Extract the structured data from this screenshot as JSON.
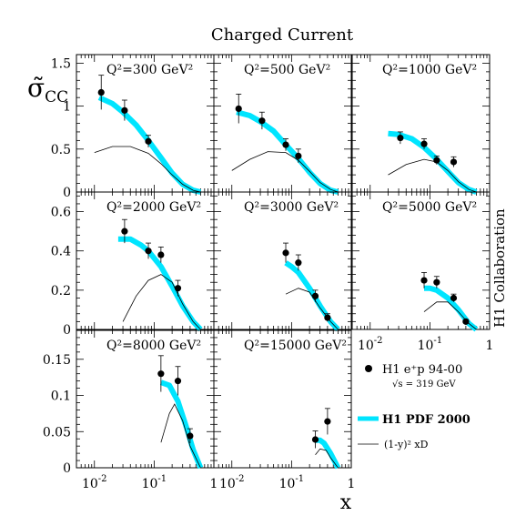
{
  "title": "Charged Current",
  "y_axis_label": "σ̃_CC",
  "x_axis_label": "x",
  "side_label": "H1 Collaboration",
  "x_tick_labels": [
    "10^-2",
    "10^-1",
    "1"
  ],
  "legend": {
    "data_label": "H1 e⁺p 94-00",
    "data_sublabel": "√s = 319 GeV",
    "pdf_label": "H1 PDF 2000",
    "xd_label": "(1-y)² xD"
  },
  "colors": {
    "pdf_band": "#00e5ff",
    "points": "#000000",
    "xd_curve": "#000000"
  },
  "chart_data": [
    {
      "type": "scatter",
      "panel": "Q2=300 GeV2",
      "label": "Q²=300 GeV²",
      "xscale": "log",
      "xlim": [
        0.005,
        1
      ],
      "ylim": [
        0,
        1.6
      ],
      "yticks": [
        "0",
        "0.5",
        "1",
        "1.5"
      ],
      "points": [
        {
          "x": 0.013,
          "y": 1.16,
          "err": 0.2
        },
        {
          "x": 0.032,
          "y": 0.95,
          "err": 0.12
        },
        {
          "x": 0.08,
          "y": 0.59,
          "err": 0.07
        }
      ],
      "pdf": [
        [
          0.012,
          1.1
        ],
        [
          0.02,
          1.03
        ],
        [
          0.03,
          0.93
        ],
        [
          0.05,
          0.78
        ],
        [
          0.08,
          0.6
        ],
        [
          0.13,
          0.4
        ],
        [
          0.2,
          0.22
        ],
        [
          0.3,
          0.09
        ],
        [
          0.45,
          0.02
        ],
        [
          0.6,
          0.0
        ]
      ],
      "xd": [
        [
          0.01,
          0.46
        ],
        [
          0.02,
          0.53
        ],
        [
          0.04,
          0.53
        ],
        [
          0.08,
          0.45
        ],
        [
          0.13,
          0.33
        ],
        [
          0.2,
          0.2
        ],
        [
          0.3,
          0.09
        ],
        [
          0.45,
          0.02
        ],
        [
          0.6,
          0.0
        ]
      ]
    },
    {
      "type": "scatter",
      "panel": "Q2=500 GeV2",
      "label": "Q²=500 GeV²",
      "xscale": "log",
      "xlim": [
        0.005,
        1
      ],
      "ylim": [
        0,
        1.6
      ],
      "yticks": [],
      "points": [
        {
          "x": 0.013,
          "y": 0.97,
          "err": 0.17
        },
        {
          "x": 0.032,
          "y": 0.83,
          "err": 0.1
        },
        {
          "x": 0.08,
          "y": 0.55,
          "err": 0.07
        },
        {
          "x": 0.13,
          "y": 0.42,
          "err": 0.08
        }
      ],
      "pdf": [
        [
          0.012,
          0.93
        ],
        [
          0.02,
          0.89
        ],
        [
          0.03,
          0.82
        ],
        [
          0.05,
          0.71
        ],
        [
          0.08,
          0.55
        ],
        [
          0.13,
          0.39
        ],
        [
          0.2,
          0.23
        ],
        [
          0.3,
          0.1
        ],
        [
          0.45,
          0.02
        ],
        [
          0.6,
          0.0
        ]
      ],
      "xd": [
        [
          0.01,
          0.25
        ],
        [
          0.02,
          0.38
        ],
        [
          0.04,
          0.47
        ],
        [
          0.08,
          0.46
        ],
        [
          0.13,
          0.37
        ],
        [
          0.2,
          0.24
        ],
        [
          0.3,
          0.11
        ],
        [
          0.45,
          0.03
        ],
        [
          0.6,
          0.0
        ]
      ]
    },
    {
      "type": "scatter",
      "panel": "Q2=1000 GeV2",
      "label": "Q²=1000 GeV²",
      "xscale": "log",
      "xlim": [
        0.005,
        1
      ],
      "ylim": [
        0,
        1.6
      ],
      "yticks": [],
      "points": [
        {
          "x": 0.032,
          "y": 0.63,
          "err": 0.07
        },
        {
          "x": 0.08,
          "y": 0.56,
          "err": 0.06
        },
        {
          "x": 0.13,
          "y": 0.37,
          "err": 0.05
        },
        {
          "x": 0.25,
          "y": 0.35,
          "err": 0.06
        }
      ],
      "pdf": [
        [
          0.02,
          0.68
        ],
        [
          0.03,
          0.67
        ],
        [
          0.05,
          0.62
        ],
        [
          0.08,
          0.52
        ],
        [
          0.13,
          0.38
        ],
        [
          0.2,
          0.24
        ],
        [
          0.3,
          0.11
        ],
        [
          0.45,
          0.03
        ],
        [
          0.6,
          0.0
        ]
      ],
      "xd": [
        [
          0.02,
          0.2
        ],
        [
          0.04,
          0.32
        ],
        [
          0.08,
          0.38
        ],
        [
          0.13,
          0.35
        ],
        [
          0.2,
          0.25
        ],
        [
          0.3,
          0.12
        ],
        [
          0.45,
          0.03
        ],
        [
          0.6,
          0.0
        ]
      ]
    },
    {
      "type": "scatter",
      "panel": "Q2=2000 GeV2",
      "label": "Q²=2000 GeV²",
      "xscale": "log",
      "xlim": [
        0.005,
        1
      ],
      "ylim": [
        0,
        0.7
      ],
      "yticks": [
        "0",
        "0.2",
        "0.4",
        "0.6"
      ],
      "points": [
        {
          "x": 0.032,
          "y": 0.5,
          "err": 0.06
        },
        {
          "x": 0.08,
          "y": 0.4,
          "err": 0.04
        },
        {
          "x": 0.13,
          "y": 0.38,
          "err": 0.04
        },
        {
          "x": 0.25,
          "y": 0.21,
          "err": 0.04
        }
      ],
      "pdf": [
        [
          0.025,
          0.46
        ],
        [
          0.04,
          0.46
        ],
        [
          0.06,
          0.43
        ],
        [
          0.08,
          0.4
        ],
        [
          0.13,
          0.32
        ],
        [
          0.2,
          0.22
        ],
        [
          0.3,
          0.12
        ],
        [
          0.45,
          0.04
        ],
        [
          0.6,
          0.0
        ]
      ],
      "xd": [
        [
          0.03,
          0.04
        ],
        [
          0.05,
          0.17
        ],
        [
          0.08,
          0.25
        ],
        [
          0.13,
          0.28
        ],
        [
          0.2,
          0.24
        ],
        [
          0.3,
          0.13
        ],
        [
          0.45,
          0.04
        ],
        [
          0.6,
          0.0
        ]
      ]
    },
    {
      "type": "scatter",
      "panel": "Q2=3000 GeV2",
      "label": "Q²=3000 GeV²",
      "xscale": "log",
      "xlim": [
        0.005,
        1
      ],
      "ylim": [
        0,
        0.7
      ],
      "yticks": [],
      "points": [
        {
          "x": 0.08,
          "y": 0.39,
          "err": 0.05
        },
        {
          "x": 0.13,
          "y": 0.34,
          "err": 0.04
        },
        {
          "x": 0.25,
          "y": 0.17,
          "err": 0.03
        },
        {
          "x": 0.4,
          "y": 0.06,
          "err": 0.02
        }
      ],
      "pdf": [
        [
          0.08,
          0.34
        ],
        [
          0.1,
          0.32
        ],
        [
          0.13,
          0.29
        ],
        [
          0.2,
          0.21
        ],
        [
          0.3,
          0.12
        ],
        [
          0.45,
          0.04
        ],
        [
          0.6,
          0.0
        ]
      ],
      "xd": [
        [
          0.08,
          0.18
        ],
        [
          0.13,
          0.21
        ],
        [
          0.2,
          0.19
        ],
        [
          0.3,
          0.11
        ],
        [
          0.45,
          0.04
        ],
        [
          0.6,
          0.0
        ]
      ]
    },
    {
      "type": "scatter",
      "panel": "Q2=5000 GeV2",
      "label": "Q²=5000 GeV²",
      "xscale": "log",
      "xlim": [
        0.005,
        1
      ],
      "ylim": [
        0,
        0.7
      ],
      "yticks": [],
      "points": [
        {
          "x": 0.08,
          "y": 0.25,
          "err": 0.04
        },
        {
          "x": 0.13,
          "y": 0.24,
          "err": 0.03
        },
        {
          "x": 0.25,
          "y": 0.16,
          "err": 0.02
        },
        {
          "x": 0.4,
          "y": 0.04,
          "err": 0.01
        }
      ],
      "pdf": [
        [
          0.08,
          0.21
        ],
        [
          0.1,
          0.21
        ],
        [
          0.13,
          0.2
        ],
        [
          0.2,
          0.16
        ],
        [
          0.3,
          0.1
        ],
        [
          0.45,
          0.03
        ],
        [
          0.6,
          0.0
        ]
      ],
      "xd": [
        [
          0.08,
          0.09
        ],
        [
          0.13,
          0.14
        ],
        [
          0.2,
          0.14
        ],
        [
          0.3,
          0.09
        ],
        [
          0.45,
          0.03
        ],
        [
          0.6,
          0.0
        ]
      ]
    },
    {
      "type": "scatter",
      "panel": "Q2=8000 GeV2",
      "label": "Q²=8000 GeV²",
      "xscale": "log",
      "xlim": [
        0.005,
        1
      ],
      "ylim": [
        0,
        0.19
      ],
      "yticks": [
        "0",
        "0.05",
        "0.1",
        "0.15"
      ],
      "points": [
        {
          "x": 0.13,
          "y": 0.13,
          "err": 0.025
        },
        {
          "x": 0.25,
          "y": 0.12,
          "err": 0.02
        },
        {
          "x": 0.4,
          "y": 0.044,
          "err": 0.01
        }
      ],
      "pdf": [
        [
          0.13,
          0.118
        ],
        [
          0.18,
          0.114
        ],
        [
          0.25,
          0.092
        ],
        [
          0.35,
          0.055
        ],
        [
          0.45,
          0.025
        ],
        [
          0.6,
          0.0
        ]
      ],
      "xd": [
        [
          0.13,
          0.035
        ],
        [
          0.18,
          0.075
        ],
        [
          0.22,
          0.088
        ],
        [
          0.3,
          0.065
        ],
        [
          0.4,
          0.03
        ],
        [
          0.6,
          0.0
        ]
      ]
    },
    {
      "type": "scatter",
      "panel": "Q2=15000 GeV2",
      "label": "Q²=15000 GeV²",
      "xscale": "log",
      "xlim": [
        0.005,
        1
      ],
      "ylim": [
        0,
        0.19
      ],
      "yticks": [],
      "points": [
        {
          "x": 0.25,
          "y": 0.039,
          "err": 0.012
        },
        {
          "x": 0.4,
          "y": 0.064,
          "err": 0.018
        }
      ],
      "pdf": [
        [
          0.25,
          0.038
        ],
        [
          0.3,
          0.038
        ],
        [
          0.35,
          0.034
        ],
        [
          0.45,
          0.02
        ],
        [
          0.6,
          0.0
        ]
      ],
      "xd": [
        [
          0.25,
          0.018
        ],
        [
          0.3,
          0.026
        ],
        [
          0.38,
          0.024
        ],
        [
          0.45,
          0.014
        ],
        [
          0.6,
          0.0
        ]
      ]
    }
  ]
}
